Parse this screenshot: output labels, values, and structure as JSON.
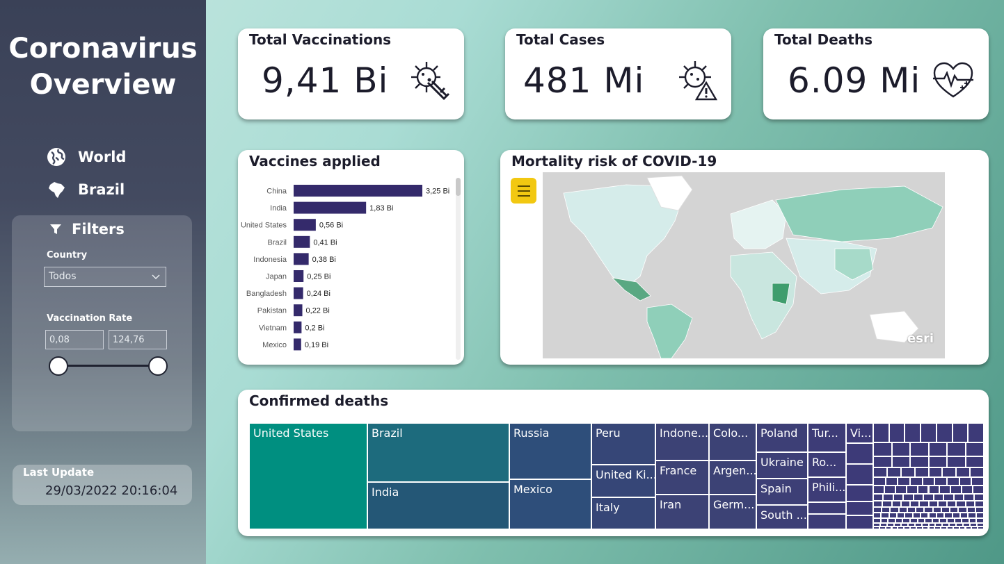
{
  "sidebar": {
    "title_line1": "Coronavirus",
    "title_line2": "Overview",
    "nav": [
      {
        "label": "World",
        "icon": "globe-icon"
      },
      {
        "label": "Brazil",
        "icon": "brazil-map-icon"
      }
    ],
    "filters": {
      "heading": "Filters",
      "icon": "funnel-icon",
      "country_label": "Country",
      "country_value": "Todos",
      "rate_label": "Vaccination Rate",
      "rate_min": "0,08",
      "rate_max": "124,76"
    },
    "last_update": {
      "label": "Last Update",
      "value": "29/03/2022 20:16:04"
    }
  },
  "kpis": {
    "vaccinations": {
      "title": "Total Vaccinations",
      "value": "9,41 Bi",
      "icon": "syringe-virus-icon"
    },
    "cases": {
      "title": "Total Cases",
      "value": "481 Mi",
      "icon": "virus-warning-icon"
    },
    "deaths": {
      "title": "Total Deaths",
      "value": "6.09 Mi",
      "icon": "heart-pulse-icon"
    }
  },
  "vaccines_chart": {
    "title": "Vaccines applied"
  },
  "map": {
    "title": "Mortality risk of COVID-19",
    "logo": "esri"
  },
  "deaths_treemap": {
    "title": "Confirmed deaths"
  },
  "colors": {
    "bar": "#342a6b",
    "tree_teal": "#008f80",
    "tree_blue": "#1d6b7d",
    "tree_slate": "#245776",
    "tree_navy": "#2e4e7a",
    "tree_indigo": "#3c4275",
    "tree_purple": "#3d3a78",
    "menu_yellow": "#f2c811"
  },
  "chart_data": {
    "type": "bar",
    "orientation": "horizontal",
    "categories": [
      "China",
      "India",
      "United States",
      "Brazil",
      "Indonesia",
      "Japan",
      "Bangladesh",
      "Pakistan",
      "Vietnam",
      "Mexico"
    ],
    "values": [
      3.25,
      1.83,
      0.56,
      0.41,
      0.38,
      0.25,
      0.24,
      0.22,
      0.2,
      0.19
    ],
    "data_labels": [
      "3,25 Bi",
      "1,83 Bi",
      "0,56 Bi",
      "0,41 Bi",
      "0,38 Bi",
      "0,25 Bi",
      "0,24 Bi",
      "0,22 Bi",
      "0,2 Bi",
      "0,19 Bi"
    ],
    "unit": "Bi",
    "xlim": [
      0,
      3.25
    ]
  },
  "treemap_labels": {
    "united_states": "United States",
    "brazil": "Brazil",
    "india": "India",
    "russia": "Russia",
    "mexico": "Mexico",
    "peru": "Peru",
    "united_kingdom": "United Ki...",
    "italy": "Italy",
    "indonesia": "Indone...",
    "france": "France",
    "iran": "Iran",
    "colombia": "Colo...",
    "argentina": "Argen...",
    "germany": "Germ...",
    "poland": "Poland",
    "ukraine": "Ukraine",
    "spain": "Spain",
    "south_africa": "South ...",
    "turkey": "Tur...",
    "romania": "Ro...",
    "philippines": "Phili...",
    "vietnam": "Vi..."
  }
}
